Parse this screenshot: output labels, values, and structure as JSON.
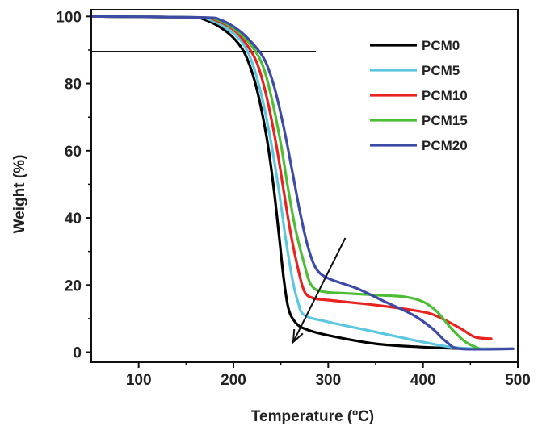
{
  "chart_data": {
    "type": "line",
    "title": "",
    "xlabel": "Temperature (ºC)",
    "ylabel": "Weight (%)",
    "xlim": [
      50,
      500
    ],
    "ylim": [
      -3,
      102
    ],
    "xticks": [
      "100",
      "200",
      "300",
      "400",
      "500"
    ],
    "yticks": [
      "0",
      "20",
      "40",
      "60",
      "80",
      "100"
    ],
    "xtick_values": [
      100,
      200,
      300,
      400,
      500
    ],
    "ytick_values": [
      0,
      20,
      40,
      60,
      80,
      100
    ],
    "grid": false,
    "legend_position": "top-right",
    "reference_line": {
      "y": 89.5,
      "x_start": 50,
      "x_end": 287
    },
    "arrow": {
      "from": [
        318,
        34
      ],
      "to": [
        263,
        3
      ]
    },
    "series": [
      {
        "name": "PCM0",
        "color": "#000000",
        "points": [
          [
            50,
            100
          ],
          [
            150,
            99.7
          ],
          [
            170,
            99
          ],
          [
            190,
            96
          ],
          [
            205,
            92
          ],
          [
            215,
            87
          ],
          [
            225,
            78
          ],
          [
            235,
            64
          ],
          [
            242,
            50
          ],
          [
            248,
            35
          ],
          [
            253,
            22
          ],
          [
            258,
            13
          ],
          [
            265,
            9
          ],
          [
            275,
            7
          ],
          [
            300,
            5
          ],
          [
            350,
            2.5
          ],
          [
            400,
            1.5
          ],
          [
            450,
            1
          ],
          [
            495,
            1
          ]
        ]
      },
      {
        "name": "PCM5",
        "color": "#5bc8e0",
        "points": [
          [
            50,
            100
          ],
          [
            155,
            99.7
          ],
          [
            175,
            99
          ],
          [
            195,
            96
          ],
          [
            210,
            92
          ],
          [
            220,
            86
          ],
          [
            230,
            76
          ],
          [
            240,
            62
          ],
          [
            248,
            48
          ],
          [
            255,
            34
          ],
          [
            262,
            22
          ],
          [
            268,
            15
          ],
          [
            275,
            11
          ],
          [
            300,
            9
          ],
          [
            350,
            6
          ],
          [
            400,
            3
          ],
          [
            430,
            1.5
          ],
          [
            460,
            1
          ],
          [
            495,
            1
          ]
        ]
      },
      {
        "name": "PCM10",
        "color": "#e8221e",
        "points": [
          [
            50,
            100
          ],
          [
            160,
            99.7
          ],
          [
            180,
            99
          ],
          [
            200,
            96
          ],
          [
            213,
            92
          ],
          [
            225,
            86
          ],
          [
            235,
            76
          ],
          [
            245,
            62
          ],
          [
            253,
            48
          ],
          [
            260,
            36
          ],
          [
            268,
            25
          ],
          [
            275,
            18
          ],
          [
            285,
            16
          ],
          [
            300,
            15.5
          ],
          [
            350,
            14
          ],
          [
            400,
            12
          ],
          [
            420,
            10
          ],
          [
            440,
            7
          ],
          [
            455,
            4.5
          ],
          [
            472,
            4
          ]
        ]
      },
      {
        "name": "PCM15",
        "color": "#4cbd35",
        "points": [
          [
            50,
            100
          ],
          [
            162,
            99.7
          ],
          [
            183,
            99
          ],
          [
            202,
            96
          ],
          [
            217,
            92
          ],
          [
            230,
            86
          ],
          [
            240,
            76
          ],
          [
            250,
            62
          ],
          [
            258,
            48
          ],
          [
            266,
            36
          ],
          [
            274,
            27
          ],
          [
            282,
            20
          ],
          [
            295,
            18
          ],
          [
            320,
            17.5
          ],
          [
            350,
            17
          ],
          [
            380,
            16.5
          ],
          [
            400,
            15
          ],
          [
            415,
            12
          ],
          [
            430,
            7
          ],
          [
            445,
            3
          ],
          [
            460,
            1
          ]
        ]
      },
      {
        "name": "PCM20",
        "color": "#3e4ba5",
        "points": [
          [
            50,
            100
          ],
          [
            165,
            99.7
          ],
          [
            186,
            99
          ],
          [
            205,
            96
          ],
          [
            220,
            92
          ],
          [
            233,
            87
          ],
          [
            243,
            79
          ],
          [
            253,
            67
          ],
          [
            262,
            54
          ],
          [
            270,
            42
          ],
          [
            278,
            32
          ],
          [
            287,
            25
          ],
          [
            300,
            22
          ],
          [
            330,
            19
          ],
          [
            360,
            15
          ],
          [
            390,
            11
          ],
          [
            410,
            7
          ],
          [
            425,
            3
          ],
          [
            440,
            1
          ],
          [
            495,
            1
          ]
        ]
      }
    ]
  }
}
